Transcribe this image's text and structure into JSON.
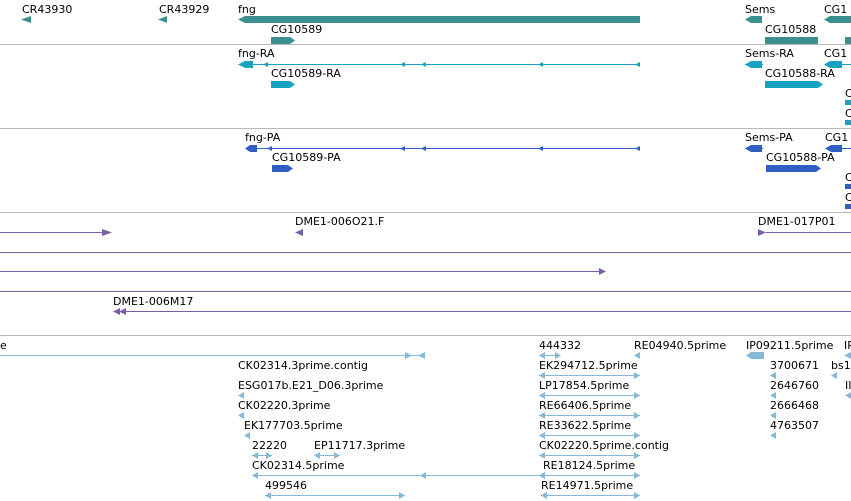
{
  "colors": {
    "gene": "#3a8f8f",
    "transcript": "#17a3bf",
    "protein": "#2f5fc4",
    "est": "#7b5ea8",
    "cdna": "#86b8d8",
    "divider": "#b8b8b8",
    "label": "#000000"
  },
  "tracks": {
    "genes": {
      "labels": [
        "CR43930",
        "CR43929",
        "fng",
        "CG10589",
        "Sems",
        "CG10588",
        "CG1"
      ]
    },
    "transcripts": {
      "labels": [
        "fng-RA",
        "CG10589-RA",
        "Sems-RA",
        "CG10588-RA",
        "CG1",
        "C",
        "C"
      ]
    },
    "proteins": {
      "labels": [
        "fng-PA",
        "CG10589-PA",
        "Sems-PA",
        "CG10588-PA",
        "CG1",
        "C",
        "C"
      ]
    },
    "ests": {
      "labels": [
        "DME1-006O21.F",
        "DME1-017P01",
        "DME1-006M17"
      ]
    },
    "cdna": {
      "labels": [
        "e",
        "444332",
        "RE04940.5prime",
        "IP09211.5prime",
        "IP",
        "CK02314.3prime.contig",
        "EK294712.5prime",
        "3700671",
        "bs1",
        "ESG017b.E21_D06.3prime",
        "LP17854.5prime",
        "2646760",
        "II",
        "CK02220.3prime",
        "RE66406.5prime",
        "2666468",
        "EK177703.5prime",
        "RE33622.5prime",
        "4763507",
        "22220",
        "EP11717.3prime",
        "CK02220.5prime.contig",
        "CK02314.5prime",
        "RE18124.5prime",
        "499546",
        "RE14971.5prime"
      ]
    }
  }
}
